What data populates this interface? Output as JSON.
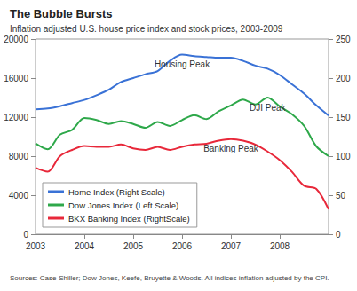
{
  "chart_data": {
    "type": "line",
    "title": "The Bubble Bursts",
    "subtitle": "Inflation adjusted U.S. house price index and stock prices, 2003-2009",
    "source": "Sources: Case-Shiller; Dow Jones, Keefe, Bruyette & Woods. All indices inflation adjusted by the CPI.",
    "x": [
      2003,
      2003.25,
      2003.5,
      2003.75,
      2004,
      2004.25,
      2004.5,
      2004.75,
      2005,
      2005.25,
      2005.5,
      2005.75,
      2006,
      2006.25,
      2006.5,
      2006.75,
      2007,
      2007.25,
      2007.5,
      2007.75,
      2008,
      2008.25,
      2008.5,
      2008.75,
      2009
    ],
    "xlim": [
      2003,
      2009
    ],
    "xticks": [
      2003,
      2004,
      2005,
      2006,
      2007,
      2008
    ],
    "ylim": [
      0,
      20000
    ],
    "yticks": [
      0,
      4000,
      8000,
      12000,
      16000,
      20000
    ],
    "y2lim": [
      0,
      250
    ],
    "y2ticks": [
      0,
      50,
      100,
      150,
      200,
      250
    ],
    "series": [
      {
        "name": "Home Index (Right Scale)",
        "color": "#3a72d6",
        "axis": "y2",
        "values": [
          160,
          161,
          164,
          168,
          172,
          178,
          185,
          195,
          200,
          205,
          209,
          222,
          230,
          228,
          227,
          226,
          226,
          222,
          216,
          212,
          204,
          192,
          180,
          165,
          152
        ]
      },
      {
        "name": "Dow Jones Index (Left Scale)",
        "color": "#2ea84a",
        "axis": "y",
        "values": [
          9300,
          8700,
          10200,
          10700,
          11900,
          11700,
          11300,
          11600,
          11300,
          10900,
          11500,
          11100,
          11700,
          12200,
          11800,
          12600,
          13200,
          13800,
          13300,
          14000,
          13100,
          12300,
          11100,
          9000,
          8000
        ]
      },
      {
        "name": "BKX Banking Index (RightScale)",
        "color": "#e8283a",
        "axis": "y2",
        "values": [
          85,
          80,
          100,
          108,
          113,
          112,
          112,
          115,
          110,
          108,
          112,
          108,
          112,
          115,
          116,
          120,
          122,
          120,
          115,
          106,
          95,
          80,
          62,
          58,
          32
        ]
      }
    ],
    "annotations": [
      {
        "text": "Housing Peak",
        "series": "Home Index (Right Scale)"
      },
      {
        "text": "DJI Peak",
        "series": "Dow Jones Index (Left Scale)"
      },
      {
        "text": "Banking Peak",
        "series": "BKX Banking Index (RightScale)"
      }
    ],
    "legend": "lower left",
    "grid": false
  }
}
